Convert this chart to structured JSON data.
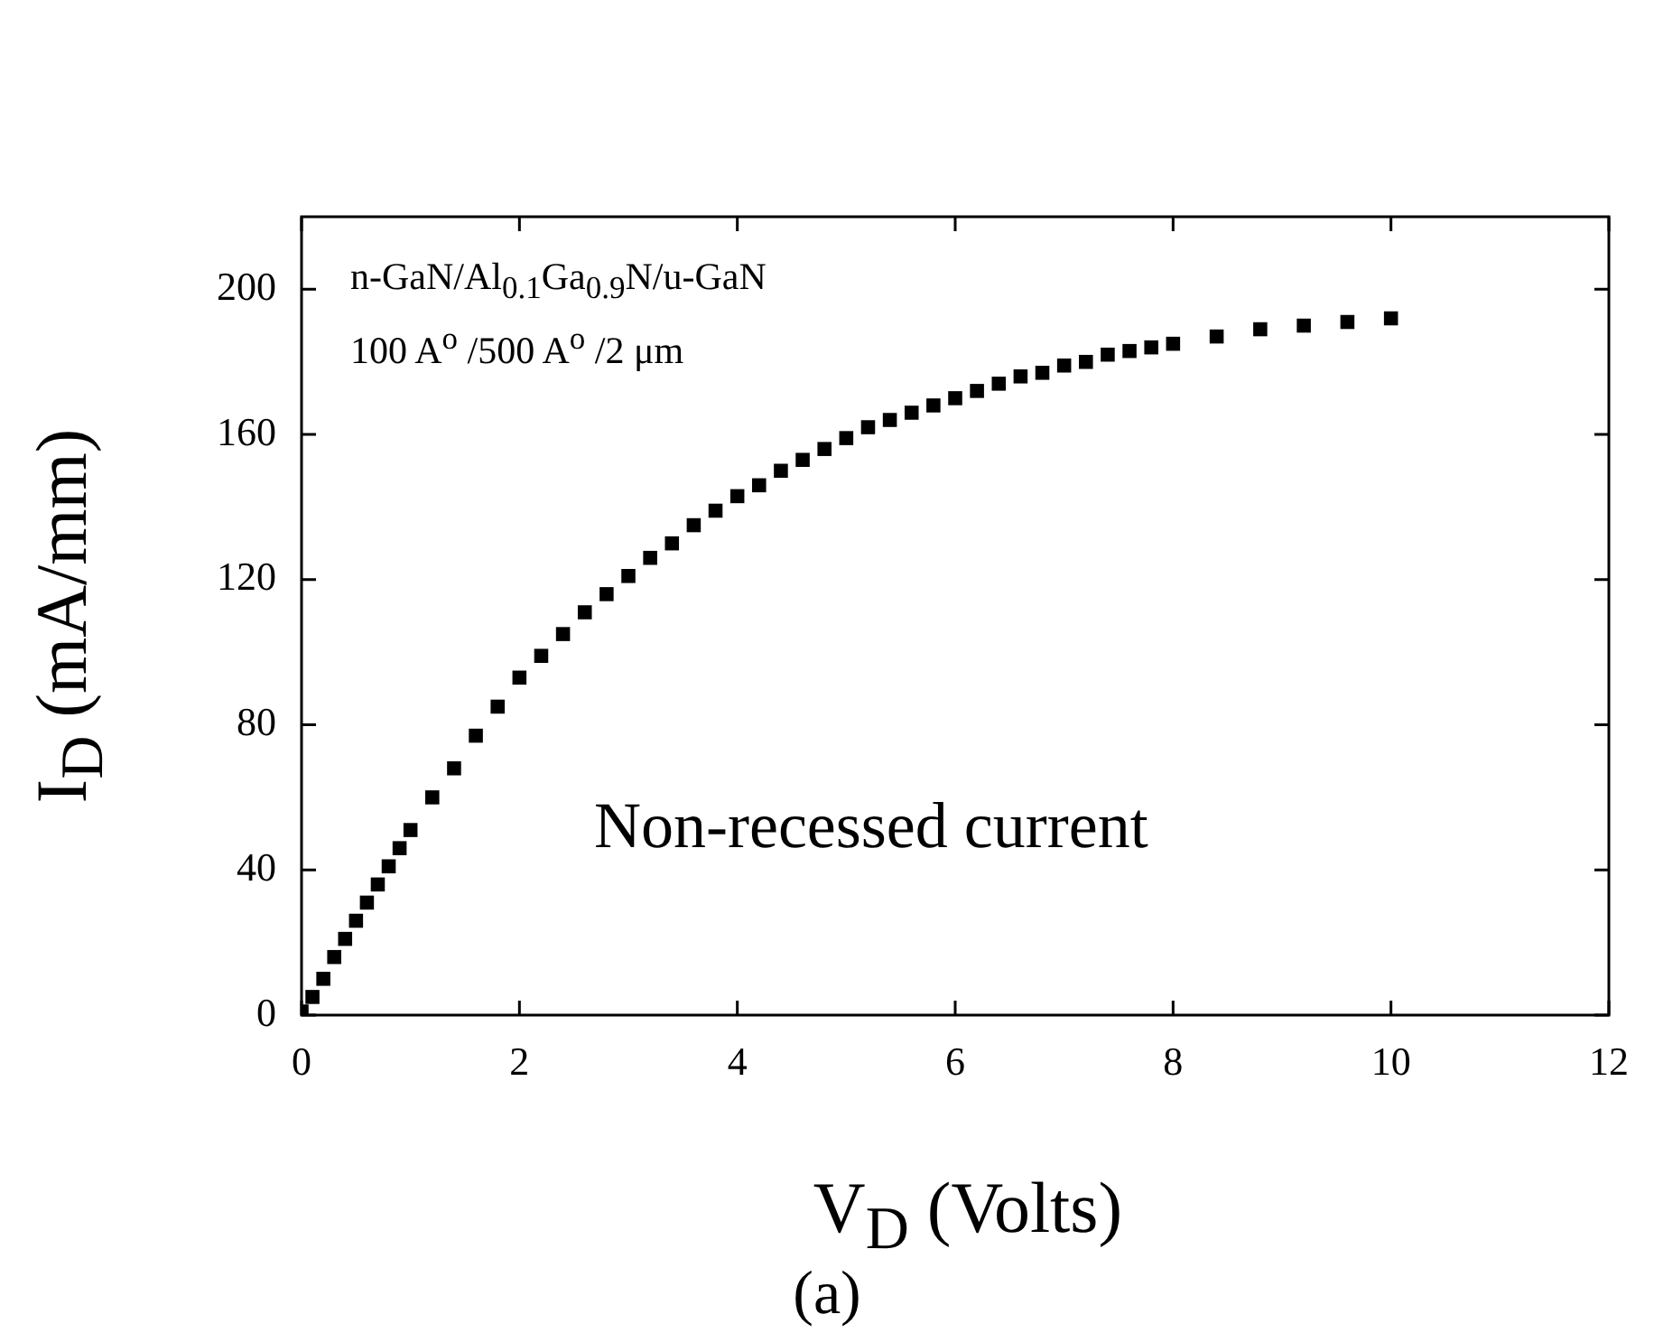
{
  "chart_data": {
    "type": "scatter",
    "xlabel": "V$_{D}$ (Volts)",
    "ylabel": "I$_{D}$ (mA/mm)",
    "annotations": [
      "n-GaN/Al$_{0.1}$Ga$_{0.9}$N/u-GaN",
      "100 A$^{o}$ /500 A$^{o}$ /2 μm",
      "Non-recessed current",
      "(a)"
    ],
    "x": [
      0,
      0.1,
      0.2,
      0.3,
      0.4,
      0.5,
      0.6,
      0.7,
      0.8,
      0.9,
      1.0,
      1.2,
      1.4,
      1.6,
      1.8,
      2.0,
      2.2,
      2.4,
      2.6,
      2.8,
      3.0,
      3.2,
      3.4,
      3.6,
      3.8,
      4.0,
      4.2,
      4.4,
      4.6,
      4.8,
      5.0,
      5.2,
      5.4,
      5.6,
      5.8,
      6.0,
      6.2,
      6.4,
      6.6,
      6.8,
      7.0,
      7.2,
      7.4,
      7.6,
      7.8,
      8.0,
      8.4,
      8.8,
      9.2,
      9.6,
      10.0
    ],
    "series": [
      {
        "color": "#000000",
        "values": [
          1,
          5,
          10,
          16,
          21,
          26,
          31,
          36,
          41,
          46,
          51,
          60,
          68,
          77,
          85,
          93,
          99,
          105,
          111,
          116,
          121,
          126,
          130,
          135,
          139,
          143,
          146,
          150,
          153,
          156,
          159,
          162,
          164,
          166,
          168,
          170,
          172,
          174,
          176,
          177,
          179,
          180,
          182,
          183,
          184,
          185,
          187,
          189,
          190,
          191,
          192
        ]
      }
    ],
    "xlim": [
      0,
      12
    ],
    "xticks": [
      0,
      2,
      4,
      6,
      8,
      10,
      12
    ],
    "ylim": [
      0,
      220
    ],
    "yticks": [
      0,
      40,
      80,
      120,
      160,
      200
    ],
    "marker": "square",
    "grid": false,
    "legend": false
  }
}
